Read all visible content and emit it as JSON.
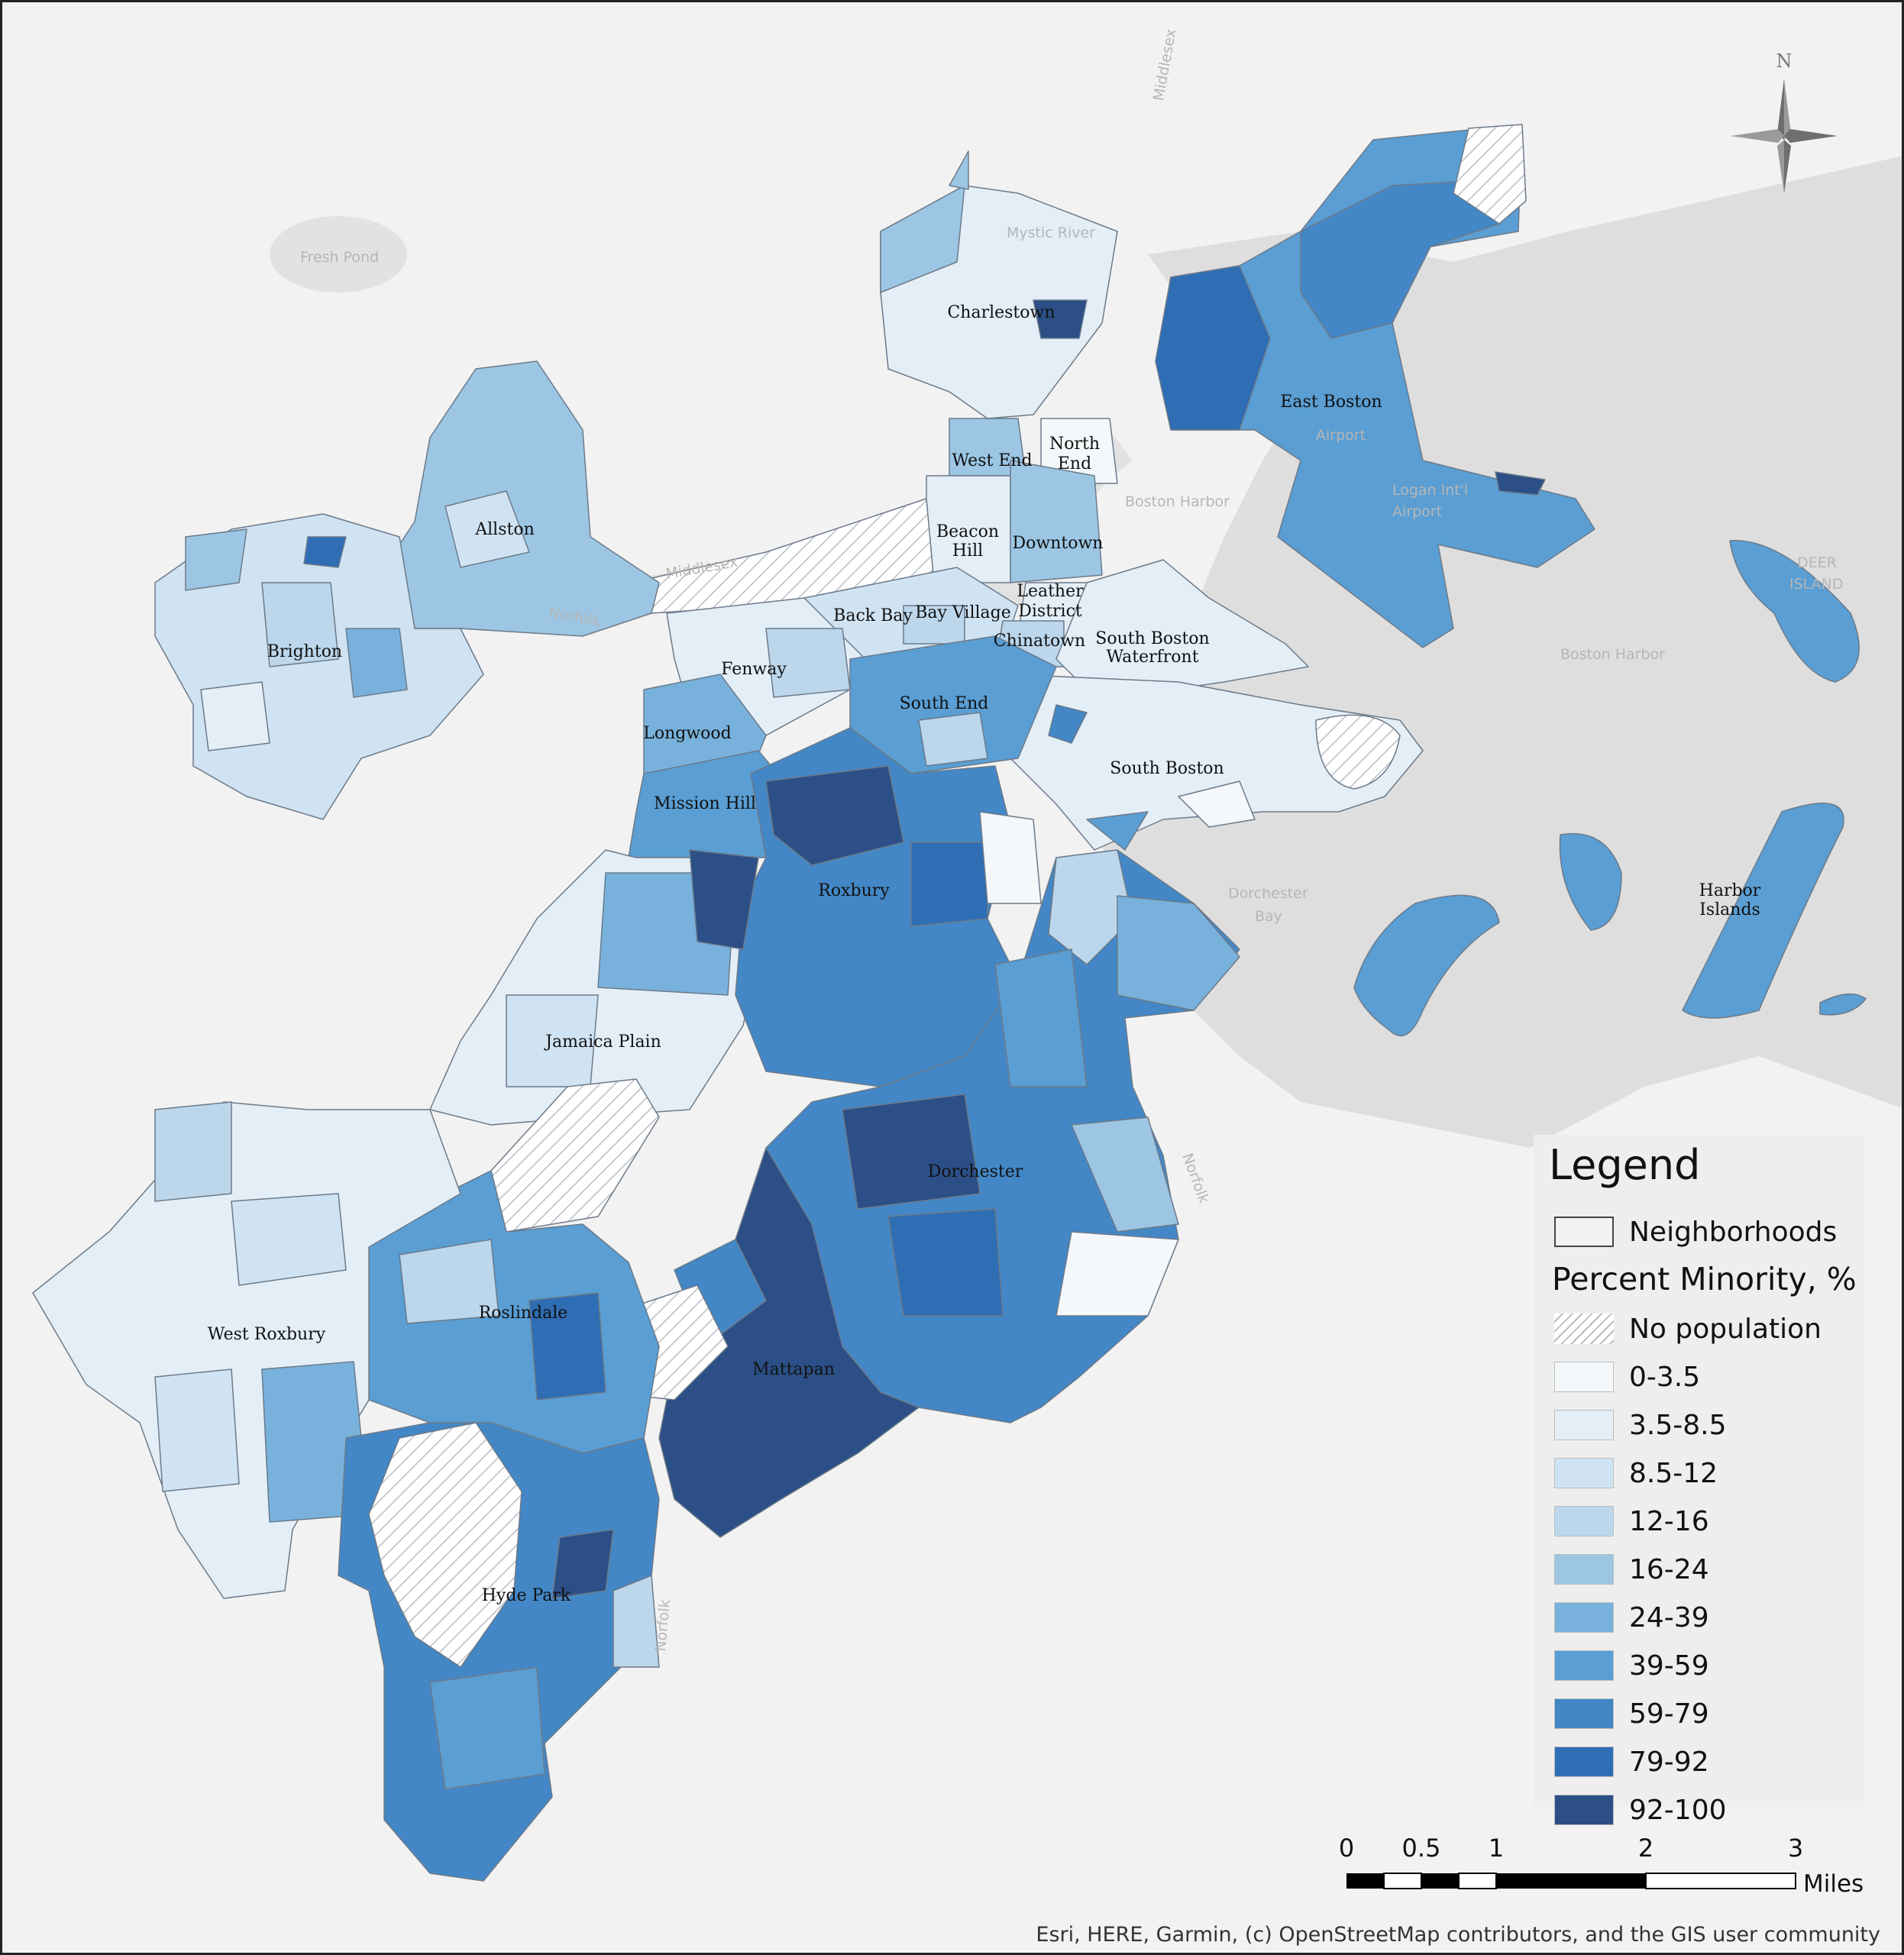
{
  "map": {
    "neighborhood_labels": [
      {
        "id": "charlestown",
        "text": "Charlestown"
      },
      {
        "id": "east-boston",
        "text": "East Boston"
      },
      {
        "id": "west-end",
        "text": "West End"
      },
      {
        "id": "north-end-1",
        "text": "North"
      },
      {
        "id": "north-end-2",
        "text": "End"
      },
      {
        "id": "allston",
        "text": "Allston"
      },
      {
        "id": "beacon-hill-1",
        "text": "Beacon"
      },
      {
        "id": "beacon-hill-2",
        "text": "Hill"
      },
      {
        "id": "downtown",
        "text": "Downtown"
      },
      {
        "id": "leather-1",
        "text": "Leather"
      },
      {
        "id": "leather-2",
        "text": "District"
      },
      {
        "id": "back-bay",
        "text": "Back Bay"
      },
      {
        "id": "bay-village",
        "text": "Bay Village"
      },
      {
        "id": "chinatown",
        "text": "Chinatown"
      },
      {
        "id": "sbw-1",
        "text": "South Boston"
      },
      {
        "id": "sbw-2",
        "text": "Waterfront"
      },
      {
        "id": "brighton",
        "text": "Brighton"
      },
      {
        "id": "fenway",
        "text": "Fenway"
      },
      {
        "id": "south-end",
        "text": "South End"
      },
      {
        "id": "longwood",
        "text": "Longwood"
      },
      {
        "id": "south-boston",
        "text": "South Boston"
      },
      {
        "id": "mission-hill",
        "text": "Mission Hill"
      },
      {
        "id": "roxbury",
        "text": "Roxbury"
      },
      {
        "id": "harbor-1",
        "text": "Harbor"
      },
      {
        "id": "harbor-2",
        "text": "Islands"
      },
      {
        "id": "jamaica-plain",
        "text": "Jamaica Plain"
      },
      {
        "id": "dorchester",
        "text": "Dorchester"
      },
      {
        "id": "roslindale",
        "text": "Roslindale"
      },
      {
        "id": "west-roxbury",
        "text": "West Roxbury"
      },
      {
        "id": "mattapan",
        "text": "Mattapan"
      },
      {
        "id": "hyde-park",
        "text": "Hyde Park"
      }
    ],
    "basemap_labels": [
      {
        "id": "fresh-pond",
        "text": "Fresh Pond"
      },
      {
        "id": "mystic-river",
        "text": "Mystic River"
      },
      {
        "id": "boston-harbor-1",
        "text": "Boston Harbor"
      },
      {
        "id": "boston-harbor-2",
        "text": "Boston Harbor"
      },
      {
        "id": "airport",
        "text": "Airport"
      },
      {
        "id": "logan",
        "text": "Logan Int'l"
      },
      {
        "id": "airport-2",
        "text": "Airport"
      },
      {
        "id": "deer-island-1",
        "text": "DEER"
      },
      {
        "id": "deer-island-2",
        "text": "ISLAND"
      },
      {
        "id": "dorchester-bay-1",
        "text": "Dorchester"
      },
      {
        "id": "dorchester-bay-2",
        "text": "Bay"
      },
      {
        "id": "middlesex-1",
        "text": "Middlesex"
      },
      {
        "id": "middlesex-2",
        "text": "Middlesex"
      },
      {
        "id": "norfolk-1",
        "text": "Norfolk"
      },
      {
        "id": "norfolk-2",
        "text": "Norfolk"
      },
      {
        "id": "norfolk-3",
        "text": "Norfolk"
      }
    ],
    "north_label": "N",
    "attribution": "Esri, HERE, Garmin, (c) OpenStreetMap contributors, and the GIS user community"
  },
  "legend": {
    "title": "Legend",
    "neighborhoods_label": "Neighborhoods",
    "variable_heading": "Percent Minority, %",
    "no_population_label": "No population",
    "classes": [
      {
        "label": "0-3.5",
        "color": "#f4f8fb"
      },
      {
        "label": "3.5-8.5",
        "color": "#e3eef7"
      },
      {
        "label": "8.5-12",
        "color": "#d0e3f2"
      },
      {
        "label": "12-16",
        "color": "#bcd7ec"
      },
      {
        "label": "16-24",
        "color": "#9cc6e4"
      },
      {
        "label": "24-39",
        "color": "#78b2dc"
      },
      {
        "label": "39-59",
        "color": "#5a9ed3"
      },
      {
        "label": "59-79",
        "color": "#4387c6"
      },
      {
        "label": "79-92",
        "color": "#2f6db4"
      },
      {
        "label": "92-100",
        "color": "#2b4f86"
      }
    ]
  },
  "scale_bar": {
    "labels": [
      "0",
      "0.5",
      "1",
      "2",
      "3"
    ],
    "unit": "Miles"
  }
}
